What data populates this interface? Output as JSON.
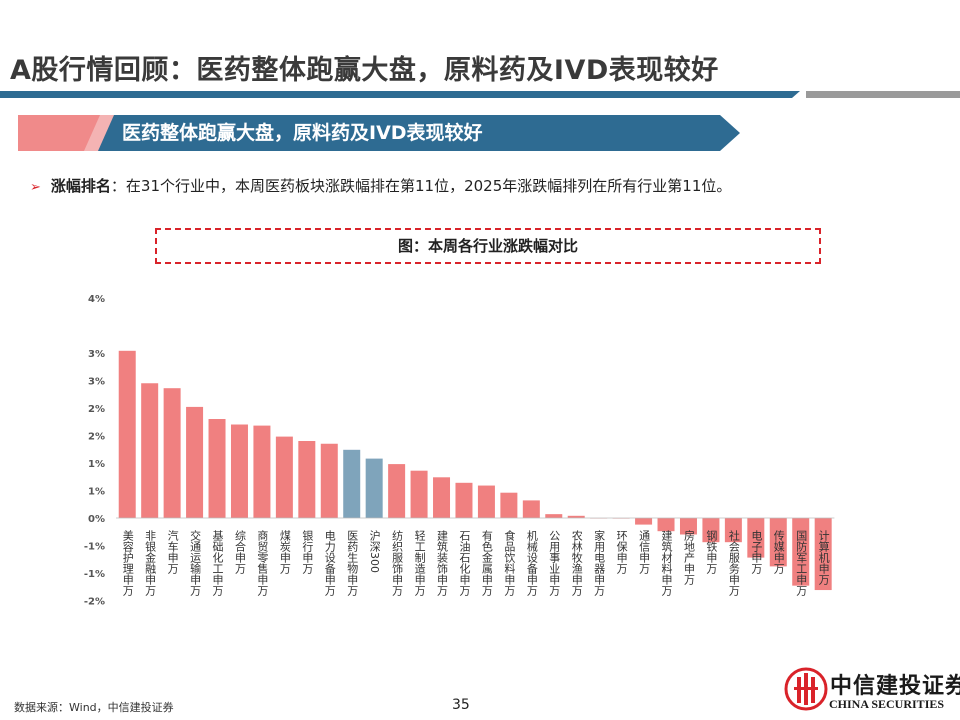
{
  "page": {
    "title": "A股行情回顾：医药整体跑赢大盘，原料药及IVD表现较好",
    "banner": "医药整体跑赢大盘，原料药及IVD表现较好",
    "bullet_key": "涨幅排名",
    "bullet_text": "：在31个行业中，本周医药板块涨跌幅排在第11位，2025年涨跌幅排列在所有行业第11位。",
    "source": "数据来源：Wind，中信建投证券",
    "page_number": "35",
    "logo_cn": "中信建投证券",
    "logo_en": "CHINA SECURITIES"
  },
  "colors": {
    "bar_default": "#f08080",
    "bar_highlight": "#7fa4bb",
    "accent_red": "#d9232a",
    "title_blue": "#2e6b92",
    "banner_blue": "#2e6b92",
    "banner_pink": "#f08a8a"
  },
  "chart_data": {
    "type": "bar",
    "title": "图：本周各行业涨跌幅对比",
    "ylim": [
      -0.02,
      0.04
    ],
    "y_ticks": [
      {
        "value": 0.04,
        "label": "4%"
      },
      {
        "value": 0.03,
        "label": "3%"
      },
      {
        "value": 0.025,
        "label": "3%"
      },
      {
        "value": 0.02,
        "label": "2%"
      },
      {
        "value": 0.015,
        "label": "2%"
      },
      {
        "value": 0.01,
        "label": "1%"
      },
      {
        "value": 0.005,
        "label": "1%"
      },
      {
        "value": 0.0,
        "label": "0%"
      },
      {
        "value": -0.005,
        "label": "-1%"
      },
      {
        "value": -0.01,
        "label": "-1%"
      },
      {
        "value": -0.015,
        "label": "-2%"
      }
    ],
    "categories": [
      "美容护理申万",
      "非银金融申万",
      "汽车申万",
      "交通运输申万",
      "基础化工申万",
      "综合申万",
      "商贸零售申万",
      "煤炭申万",
      "银行申万",
      "电力设备申万",
      "医药生物申万",
      "沪深300",
      "纺织服饰申万",
      "轻工制造申万",
      "建筑装饰申万",
      "石油石化申万",
      "有色金属申万",
      "食品饮料申万",
      "机械设备申万",
      "公用事业申万",
      "农林牧渔申万",
      "家用电器申万",
      "环保申万",
      "通信申万",
      "建筑材料申万",
      "房地产申万",
      "钢铁申万",
      "社会服务申万",
      "电子申万",
      "传媒申万",
      "国防军工申万",
      "计算机申万"
    ],
    "values": [
      0.0304,
      0.0245,
      0.0236,
      0.0202,
      0.018,
      0.017,
      0.0168,
      0.0148,
      0.014,
      0.0135,
      0.0124,
      0.0108,
      0.0098,
      0.0086,
      0.0074,
      0.0064,
      0.0059,
      0.0046,
      0.0032,
      0.0007,
      0.0004,
      0.0,
      -0.0001,
      -0.0012,
      -0.0024,
      -0.003,
      -0.0044,
      -0.0044,
      -0.0072,
      -0.0088,
      -0.0123,
      -0.0131
    ],
    "highlight": [
      "医药生物申万",
      "沪深300"
    ],
    "grid": false,
    "legend": "none"
  }
}
